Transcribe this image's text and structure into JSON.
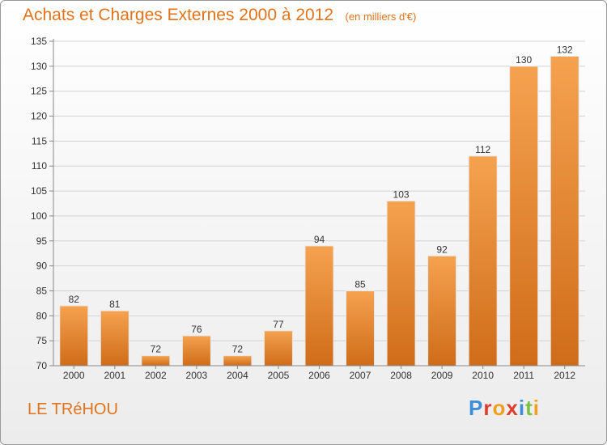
{
  "header": {
    "title": "Achats et Charges Externes 2000 à 2012",
    "unit": "(en milliers d'€)"
  },
  "footer": {
    "commune": "LE TRéHOU",
    "brand": "Proxiti",
    "brand_colors": [
      "#3a8fd8",
      "#e03c2e",
      "#f0a020",
      "#e03c2e",
      "#3a8fd8",
      "#7ac143",
      "#f0a020"
    ]
  },
  "chart_data": {
    "type": "bar",
    "title": "Achats et Charges Externes 2000 à 2012",
    "xlabel": "",
    "ylabel": "",
    "categories": [
      "2000",
      "2001",
      "2002",
      "2003",
      "2004",
      "2005",
      "2006",
      "2007",
      "2008",
      "2009",
      "2010",
      "2011",
      "2012"
    ],
    "values": [
      82,
      81,
      72,
      76,
      72,
      77,
      94,
      85,
      103,
      92,
      112,
      130,
      132
    ],
    "ylim": [
      70,
      135
    ],
    "yticks": [
      70,
      75,
      80,
      85,
      90,
      95,
      100,
      105,
      110,
      115,
      120,
      125,
      130,
      135
    ],
    "grid": true,
    "data_labels": true,
    "bar_color_top": "#f5a24f",
    "bar_color_bottom": "#cf6c19"
  }
}
